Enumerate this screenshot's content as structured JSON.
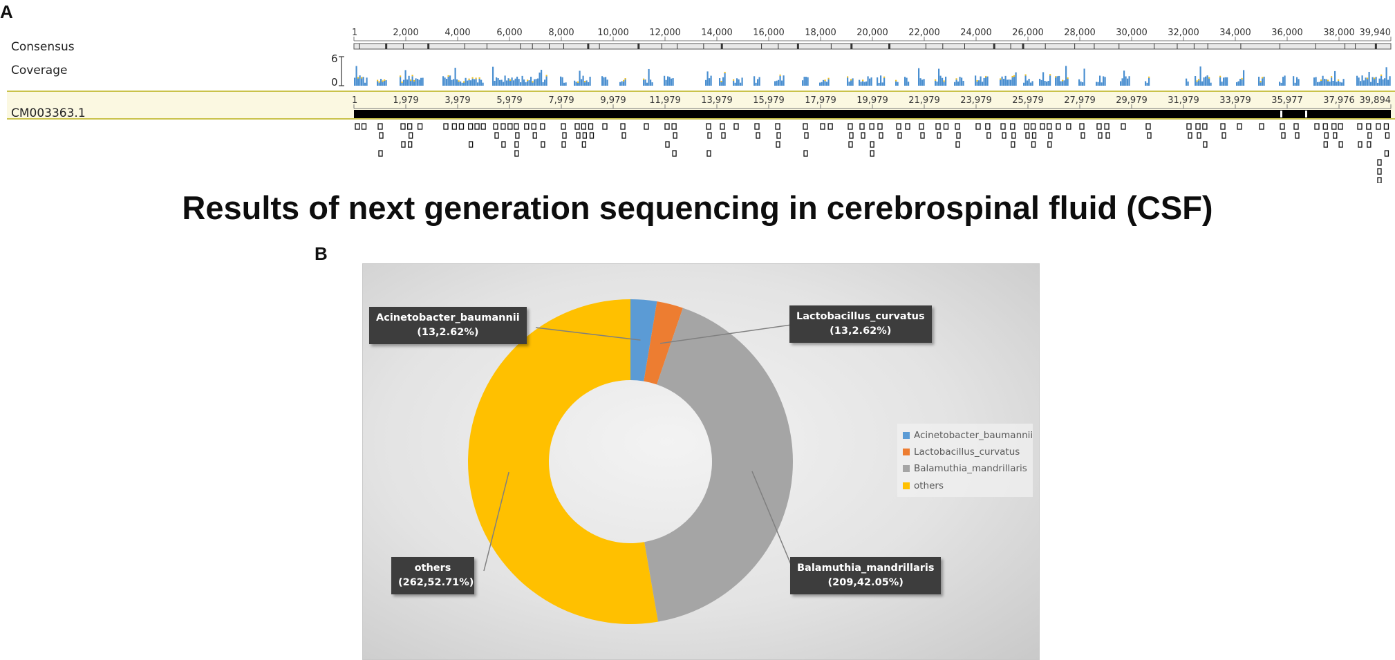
{
  "panel_a": {
    "letter": "A",
    "tracks": {
      "consensus_label": "Consensus",
      "coverage_label": "Coverage",
      "coverage_axis": {
        "max": "6",
        "min": "0"
      },
      "reference_label": "CM003363.1"
    },
    "consensus_ticks": [
      "1",
      "2,000",
      "4,000",
      "6,000",
      "8,000",
      "10,000",
      "12,000",
      "14,000",
      "16,000",
      "18,000",
      "20,000",
      "22,000",
      "24,000",
      "26,000",
      "28,000",
      "30,000",
      "32,000",
      "34,000",
      "36,000",
      "38,000",
      "39,940"
    ],
    "reference_ticks": [
      "1",
      "1,979",
      "3,979",
      "5,979",
      "7,979",
      "9,979",
      "11,979",
      "13,979",
      "15,979",
      "17,979",
      "19,979",
      "21,979",
      "23,979",
      "25,979",
      "27,979",
      "29,979",
      "31,979",
      "33,979",
      "35,977",
      "37,976",
      "39,894"
    ],
    "colors": {
      "coverage_fill": "#4a8fd0",
      "coverage_peak": "#f0c020",
      "band_fill": "#fbf8e1",
      "band_border": "#c9c24a"
    }
  },
  "title": "Results of next generation sequencing in cerebrospinal fluid (CSF)",
  "panel_b": {
    "letter": "B"
  },
  "chart_data": {
    "type": "pie",
    "subtype": "doughnut",
    "categories": [
      "Acinetobacter_baumannii",
      "Lactobacillus_curvatus",
      "Balamuthia_mandrillaris",
      "others"
    ],
    "values": [
      13,
      13,
      209,
      262
    ],
    "percentages": [
      2.62,
      2.62,
      42.05,
      52.71
    ],
    "colors": [
      "#5b9bd5",
      "#ed7d31",
      "#a5a5a5",
      "#ffc000"
    ],
    "data_labels": [
      {
        "name": "Acinetobacter_baumannii",
        "value": "(13,2.62%)"
      },
      {
        "name": "Lactobacillus_curvatus",
        "value": "(13,2.62%)"
      },
      {
        "name": "Balamuthia_mandrillaris",
        "value": "(209,42.05%)"
      },
      {
        "name": "others",
        "value": "(262,52.71%)"
      }
    ],
    "legend": {
      "placement": "right",
      "entries": [
        "Acinetobacter_baumannii",
        "Lactobacillus_curvatus",
        "Balamuthia_mandrillaris",
        "others"
      ]
    }
  }
}
